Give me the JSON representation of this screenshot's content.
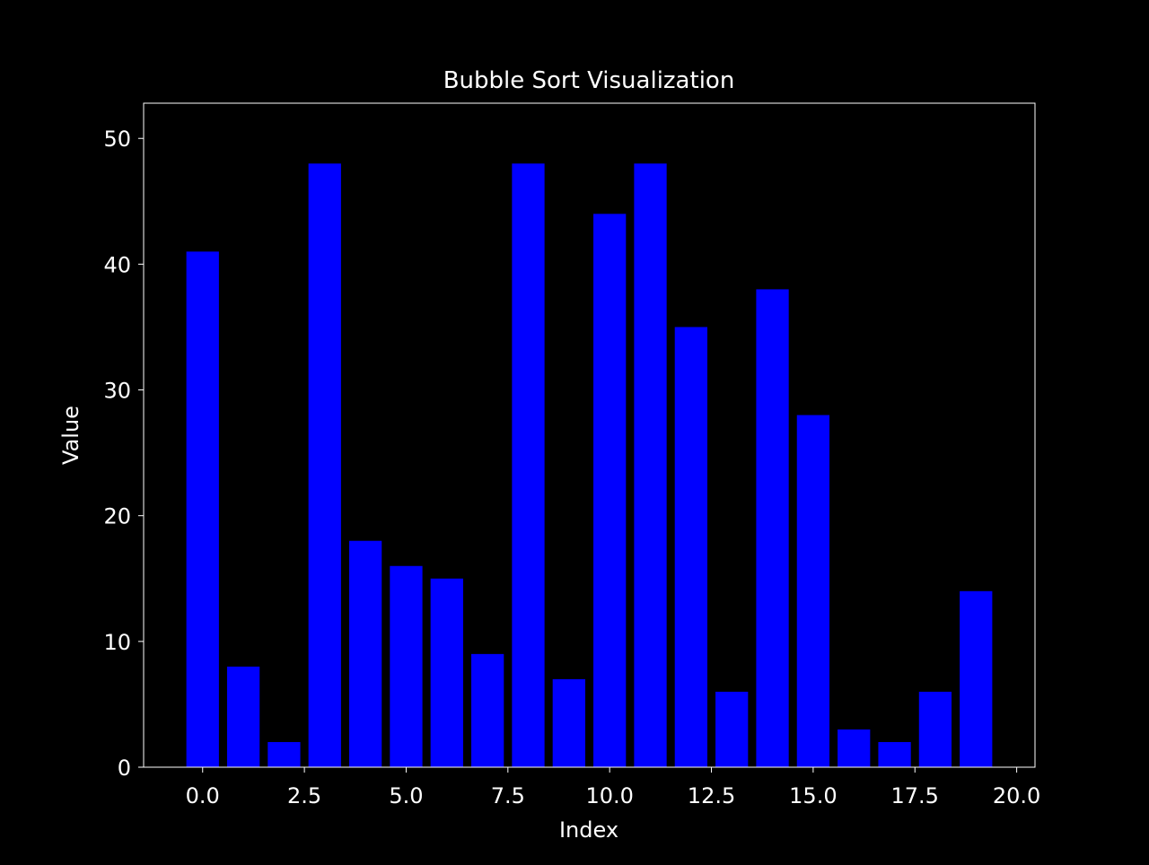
{
  "chart_data": {
    "type": "bar",
    "title": "Bubble Sort Visualization",
    "xlabel": "Index",
    "ylabel": "Value",
    "x": [
      0,
      1,
      2,
      3,
      4,
      5,
      6,
      7,
      8,
      9,
      10,
      11,
      12,
      13,
      14,
      15,
      16,
      17,
      18,
      19
    ],
    "values": [
      41,
      8,
      2,
      48,
      18,
      16,
      15,
      9,
      48,
      7,
      44,
      48,
      35,
      6,
      38,
      28,
      3,
      2,
      6,
      14
    ],
    "xlim": [
      -1.45,
      20.45
    ],
    "ylim": [
      0,
      52.8
    ],
    "xticks": [
      0.0,
      2.5,
      5.0,
      7.5,
      10.0,
      12.5,
      15.0,
      17.5,
      20.0
    ],
    "xtick_labels": [
      "0.0",
      "2.5",
      "5.0",
      "7.5",
      "10.0",
      "12.5",
      "15.0",
      "17.5",
      "20.0"
    ],
    "yticks": [
      0,
      10,
      20,
      30,
      40,
      50
    ],
    "ytick_labels": [
      "0",
      "10",
      "20",
      "30",
      "40",
      "50"
    ],
    "grid": false,
    "legend": "none",
    "colors": {
      "background": "#000000",
      "bar": "#0000ff",
      "axes": "#ffffff",
      "text": "#ffffff"
    }
  }
}
